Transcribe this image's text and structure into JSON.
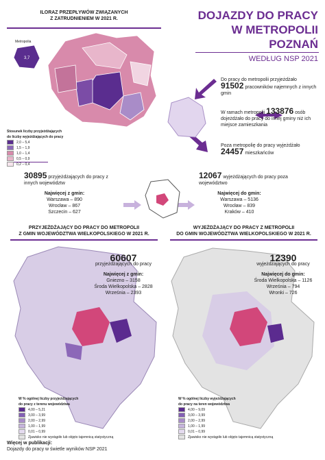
{
  "top_left": {
    "title": [
      "ILORAZ PRZEPŁYWÓW ZWIĄZANYCH",
      "Z ZATRUDNIENIEM W 2021 R."
    ],
    "metro_label": "Metropolia",
    "metro_value": "3,7",
    "legend": {
      "title": [
        "Stosunek liczby przyjeżdżających",
        "do liczby wyjeżdżających do pracy"
      ],
      "items": [
        "2,0 – 5,4",
        "1,5 – 1,9",
        "1,0 – 1,4",
        "0,5 – 0,9",
        "0,2 – 0,4"
      ]
    }
  },
  "header": {
    "title": [
      "DOJAZDY DO PRACY",
      "W METROPOLII",
      "POZNAŃ"
    ],
    "subtitle": "WEDŁUG NSP 2021"
  },
  "facts": [
    {
      "before": "Do pracy do metropolii przyjeżdżało",
      "number": "91502",
      "after": "pracowników najemnych z innych gmin"
    },
    {
      "before": "W ramach metropolii",
      "number": "133876",
      "after": "osób dojeżdżało do pracy do innej gminy niż ich miejsce zamieszkania"
    },
    {
      "before": "Poza metropolię do pracy wyjeżdżało",
      "number": "24457",
      "after": "mieszkańców"
    }
  ],
  "inter": [
    {
      "number": "30895",
      "text": "przyjeżdżających do pracy z innych województw",
      "most": "Najwięcej z gmin:",
      "items": [
        "Warszawa – 890",
        "Wrocław – 867",
        "Szczecin – 627"
      ]
    },
    {
      "number": "12067",
      "text": "wyjeżdżających do pracy poza województwo",
      "most": "Najwięcej do gmin:",
      "items": [
        "Warszawa – 5136",
        "Wrocław – 839",
        "Kraków – 410"
      ]
    }
  ],
  "maps": [
    {
      "title": [
        "PRZYJEŻDŻAJĄCY DO PRACY DO METROPOLII",
        "Z GMIN WOJEWÓDZTWA WIELKOPOLSKIEGO  W 2021 R."
      ],
      "number": "60607",
      "text": "przyjeżdżających do pracy",
      "most": "Najwięcej z gmin:",
      "items": [
        "Gniezno – 3158",
        "Środa Wielkopolska – 2828",
        "Września – 2393"
      ],
      "legend": {
        "title": [
          "W % ogólnej liczby przyjeżdżających",
          "do pracy z terenu województwa"
        ],
        "items": [
          "4,00 – 5,21",
          "3,00 – 3,99",
          "2,00 – 2,99",
          "1,00 – 1,99",
          "0,01 – 0,99",
          "Zjawisko nie wystąpiło lub objęto tajemnicą statystyczną"
        ]
      }
    },
    {
      "title": [
        "WYJEŻDŻAJĄCY DO PRACY Z METROPOLII",
        "DO GMIN WOJEWÓDZTWA WIELKOPOLSKIEGO  W 2021 R."
      ],
      "number": "12390",
      "text": "wyjeżdżających do pracy",
      "most": "Najwięcej do gmin:",
      "items": [
        "Środa Wielkopolska – 1126",
        "Września – 794",
        "Wronki – 726"
      ],
      "legend": {
        "title": [
          "W % ogólnej liczby wyjeżdżających",
          "do pracy na teren województwa"
        ],
        "items": [
          "4,00 – 9,09",
          "3,00 – 3,99",
          "2,00 – 2,99",
          "1,00 – 1,99",
          "0,01 – 0,99",
          "Zjawisko nie wystąpiło lub objęto tajemnicą statystyczną"
        ]
      }
    }
  ],
  "footer": {
    "label": "Więcej w publikacji:",
    "publication": "Dojazdy do pracy w świetle wyników NSP 2021"
  }
}
